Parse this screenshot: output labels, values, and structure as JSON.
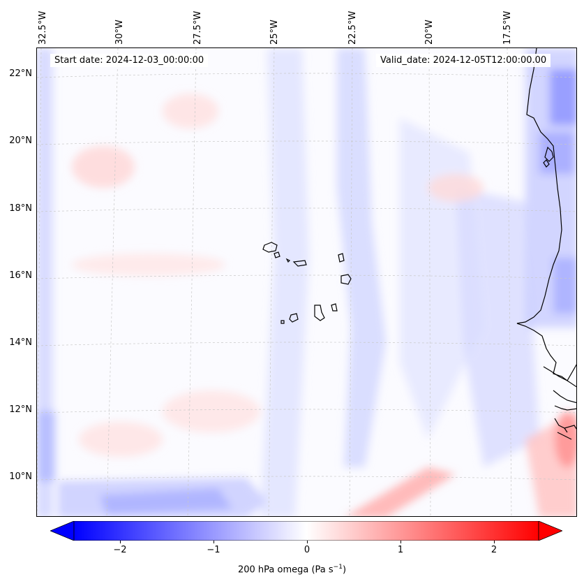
{
  "header": {
    "start_date": "Start date: 2024-12-03_00:00:00",
    "valid_date": "Valid_date: 2024-12-05T12:00:00.00"
  },
  "map": {
    "lon_labels": [
      "32.5°W",
      "30°W",
      "27.5°W",
      "25°W",
      "22.5°W",
      "20°W",
      "17.5°W"
    ],
    "lat_labels": [
      "22°N",
      "20°N",
      "18°N",
      "16°N",
      "14°N",
      "12°N",
      "10°N"
    ],
    "colors": {
      "negative": "#0000ff",
      "zero": "#ffffff",
      "positive": "#ff0000",
      "coast": "#000000",
      "grid": "#c8c8c8"
    }
  },
  "colorbar": {
    "label": "200 hPa omega (Pa s",
    "label_exponent": "−1",
    "label_close": ")",
    "ticks": [
      "−2",
      "−1",
      "0",
      "1",
      "2"
    ]
  }
}
